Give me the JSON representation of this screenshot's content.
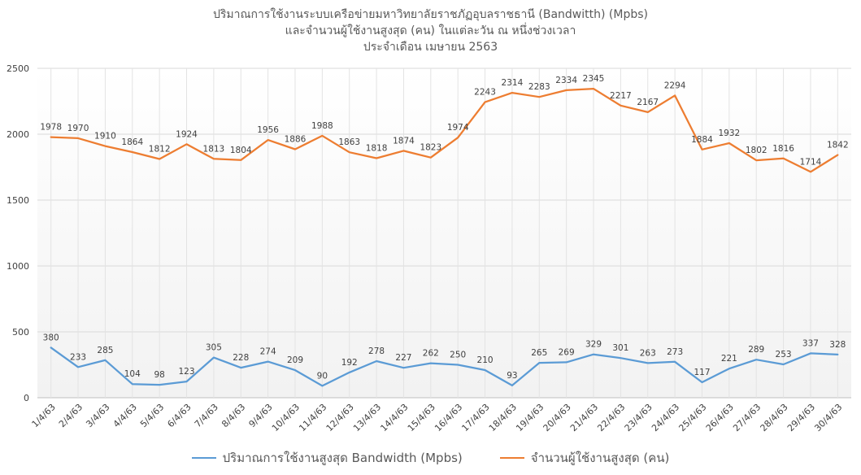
{
  "title": {
    "line1": "ปริมาณการใช้งานระบบเครือข่ายมหาวิทยาลัยราชภัฏอุบลราชธานี (Bandwitth) (Mpbs)",
    "line2": "และจำนวนผู้ใช้งานสูงสุด (คน) ในแต่ละวัน ณ หนึ่งช่วงเวลา",
    "line3": "ประจำเดือน เมษายน 2563"
  },
  "chart_data": {
    "type": "line",
    "title": "ปริมาณการใช้งานระบบเครือข่ายมหาวิทยาลัยราชภัฏอุบลราชธานี (Bandwitth) (Mpbs) และจำนวนผู้ใช้งานสูงสุด (คน) ในแต่ละวัน ณ หนึ่งช่วงเวลา ประจำเดือน เมษายน 2563",
    "categories": [
      "1/4/63",
      "2/4/63",
      "3/4/63",
      "4/4/63",
      "5/4/63",
      "6/4/63",
      "7/4/63",
      "8/4/63",
      "9/4/63",
      "10/4/63",
      "11/4/63",
      "12/4/63",
      "13/4/63",
      "14/4/63",
      "15/4/63",
      "16/4/63",
      "17/4/63",
      "18/4/63",
      "19/4/63",
      "20/4/63",
      "21/4/63",
      "22/4/63",
      "23/4/63",
      "24/4/63",
      "25/4/63",
      "26/4/63",
      "27/4/63",
      "28/4/63",
      "29/4/63",
      "30/4/63"
    ],
    "ylim": [
      0,
      2500
    ],
    "yticks": [
      0,
      500,
      1000,
      1500,
      2000,
      2500
    ],
    "grid": true,
    "legend_position": "bottom",
    "series": [
      {
        "name": "ปริมาณการใช้งานสูงสุด Bandwidth (Mpbs)",
        "color": "#5B9BD5",
        "values": [
          380,
          233,
          285,
          104,
          98,
          123,
          305,
          228,
          274,
          209,
          90,
          192,
          278,
          227,
          262,
          250,
          210,
          93,
          265,
          269,
          329,
          301,
          263,
          273,
          117,
          221,
          289,
          253,
          337,
          328
        ]
      },
      {
        "name": "จำนวนผู้ใช้งานสูงสุด (คน)",
        "color": "#ED7D31",
        "values": [
          1978,
          1970,
          1910,
          1864,
          1812,
          1924,
          1813,
          1804,
          1956,
          1886,
          1988,
          1863,
          1818,
          1874,
          1823,
          1974,
          2243,
          2314,
          2283,
          2334,
          2345,
          2217,
          2167,
          2294,
          1884,
          1932,
          1802,
          1816,
          1714,
          1842
        ]
      }
    ]
  }
}
